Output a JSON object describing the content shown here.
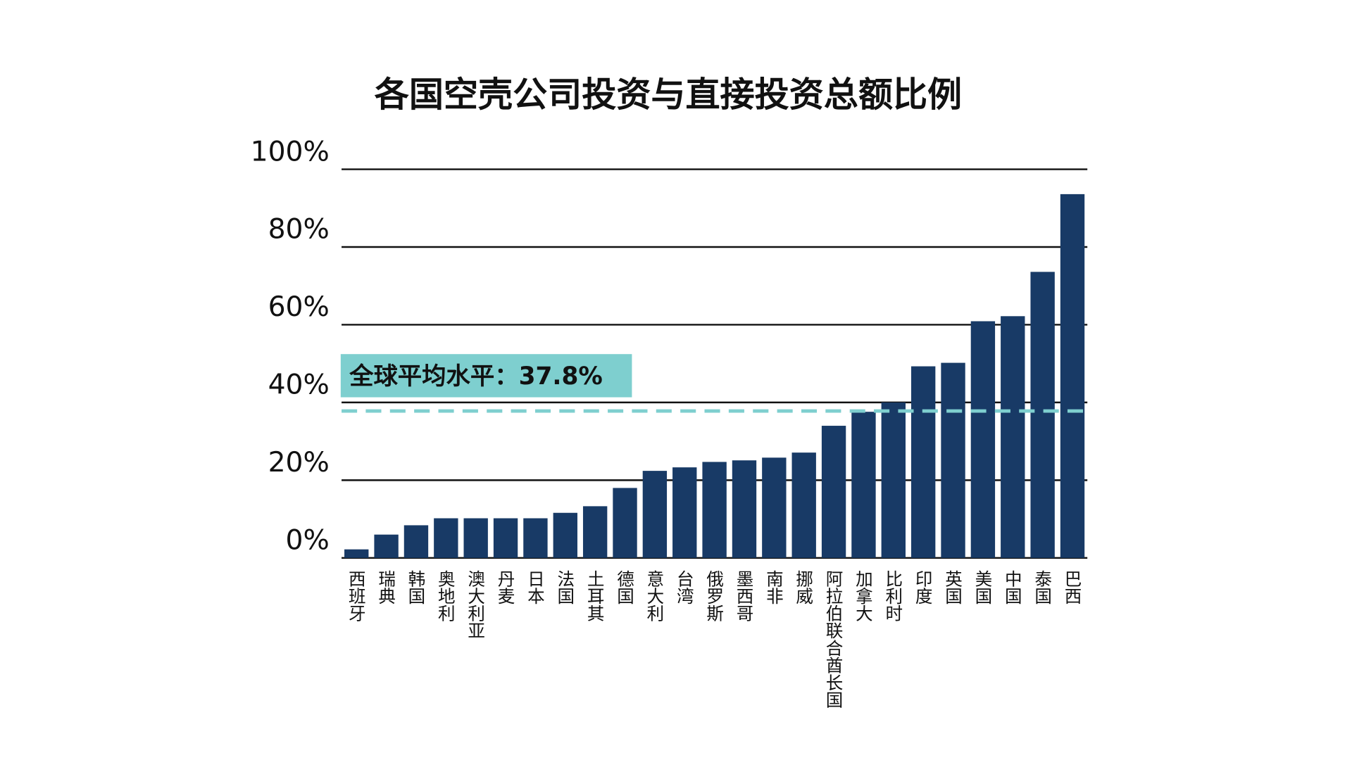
{
  "chart_data": {
    "type": "bar",
    "title": "各国空壳公司投资与直接投资总额比例",
    "categories": [
      "西班牙",
      "瑞典",
      "韩国",
      "奥地利",
      "澳大利亚",
      "丹麦",
      "日本",
      "法国",
      "土耳其",
      "德国",
      "意大利",
      "台湾",
      "俄罗斯",
      "墨西哥",
      "南非",
      "挪威",
      "阿拉伯联合酋长国",
      "加拿大",
      "比利时",
      "印度",
      "英国",
      "美国",
      "中国",
      "泰国",
      "巴西"
    ],
    "values": [
      2.2,
      6,
      8.4,
      10.2,
      10.2,
      10.2,
      10.2,
      11.6,
      13.3,
      18,
      22.4,
      23.3,
      24.7,
      25.1,
      25.8,
      27.1,
      34,
      37.6,
      40,
      49.3,
      50.2,
      60.9,
      62.2,
      73.6,
      93.6
    ],
    "color": "#183a66",
    "ylim": [
      0,
      100
    ],
    "yticks": [
      {
        "value": 0,
        "label": "0%"
      },
      {
        "value": 20,
        "label": "20%"
      },
      {
        "value": 40,
        "label": "40%"
      },
      {
        "value": 60,
        "label": "60%"
      },
      {
        "value": 80,
        "label": "80%"
      },
      {
        "value": 100,
        "label": "100%"
      }
    ],
    "grid": true,
    "average": {
      "label": "全球平均水平：37.8%",
      "value": 37.8,
      "color": "#7ecfcf"
    }
  }
}
